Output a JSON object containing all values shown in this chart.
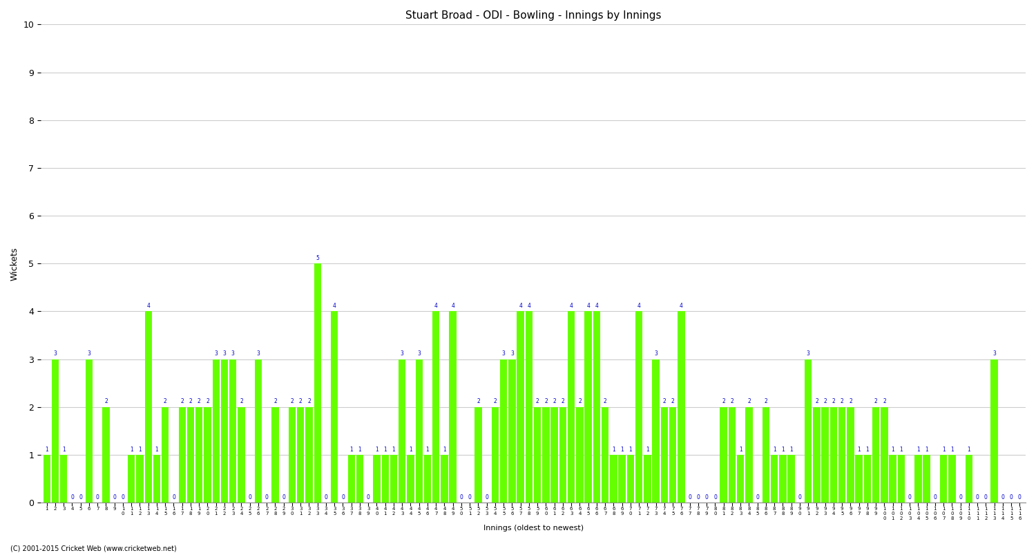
{
  "title": "Stuart Broad - ODI - Bowling - Innings by Innings",
  "ylabel": "Wickets",
  "xlabel": "Innings (oldest to newest)",
  "ylim": [
    0,
    10
  ],
  "bar_color": "#66ff00",
  "label_color": "#0000cc",
  "background_color": "#ffffff",
  "grid_color": "#cccccc",
  "wickets": [
    1,
    3,
    1,
    0,
    0,
    3,
    0,
    2,
    0,
    0,
    1,
    1,
    4,
    1,
    2,
    0,
    2,
    2,
    2,
    2,
    3,
    3,
    3,
    2,
    0,
    3,
    0,
    2,
    0,
    2,
    2,
    2,
    5,
    0,
    4,
    0,
    1,
    1,
    0,
    1,
    1,
    1,
    3,
    1,
    3,
    1,
    4,
    1,
    4,
    0,
    0,
    2,
    0,
    2,
    3,
    3,
    4,
    4,
    2,
    2,
    2,
    2,
    4,
    2,
    4,
    4,
    2,
    1,
    1,
    1,
    4,
    1,
    3,
    2,
    2,
    4,
    0,
    0,
    0,
    0,
    2,
    2,
    1,
    2,
    0,
    2,
    1,
    1,
    1,
    0,
    3,
    2,
    2,
    2,
    2,
    2,
    1,
    1,
    2,
    2,
    1,
    1,
    0,
    1,
    1,
    0,
    1,
    1,
    0,
    1,
    0,
    0,
    3,
    0,
    0,
    0
  ],
  "innings_labels": [
    1,
    2,
    3,
    4,
    5,
    6,
    7,
    8,
    9,
    10,
    11,
    12,
    13,
    14,
    15,
    16,
    17,
    18,
    19,
    20,
    21,
    22,
    23,
    24,
    25,
    26,
    27,
    28,
    29,
    30,
    31,
    32,
    33,
    34,
    35,
    36,
    37,
    38,
    39,
    40,
    41,
    42,
    43,
    44,
    45,
    46,
    47,
    48,
    49,
    50,
    51,
    52,
    53,
    54,
    55,
    56,
    57,
    58,
    59,
    60,
    61,
    62,
    63,
    64,
    65,
    66,
    67,
    68,
    69,
    70,
    71,
    72,
    73,
    74,
    75,
    76,
    77,
    78,
    79,
    80,
    81,
    82,
    83,
    84,
    85,
    86,
    87,
    88,
    89,
    90,
    91,
    92,
    93,
    94,
    95,
    96,
    97,
    98,
    99,
    100,
    101,
    102,
    103,
    104,
    105,
    106,
    107,
    108,
    109,
    110,
    111,
    112,
    113,
    114,
    115,
    116
  ]
}
